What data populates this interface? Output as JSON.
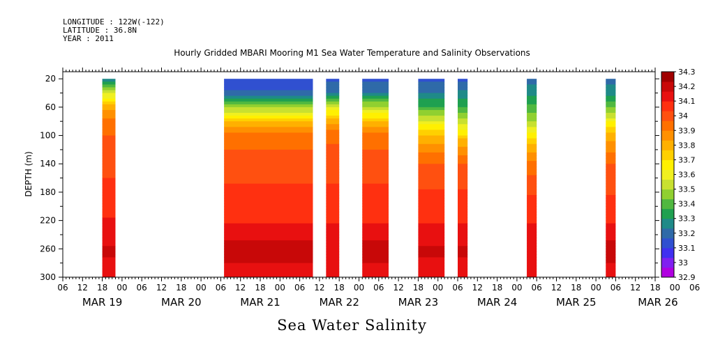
{
  "header": {
    "longitude": "LONGITUDE : 122W(-122)",
    "latitude": "LATITUDE : 36.8N",
    "year": "YEAR : 2011"
  },
  "colors": {
    "scale": [
      "#b000e0",
      "#8020f0",
      "#4030f0",
      "#3050d0",
      "#2f6aa8",
      "#1f8a88",
      "#1fa050",
      "#50b840",
      "#90d030",
      "#c8e030",
      "#f0f020",
      "#fff000",
      "#ffd000",
      "#ffb000",
      "#ff9000",
      "#ff7000",
      "#ff5010",
      "#ff3010",
      "#e81010",
      "#c80808",
      "#a00000"
    ]
  },
  "chart_data": {
    "type": "heatmap",
    "title": "Hourly Gridded MBARI Mooring M1 Sea Water Temperature and Salinity Observations",
    "subtitle": "Sea Water Salinity",
    "ylabel": "DEPTH (m)",
    "xlabel": "",
    "ylim": [
      300,
      10
    ],
    "y_reversed": true,
    "x_range_hours": [
      0,
      180
    ],
    "yticks": [
      20,
      60,
      100,
      140,
      180,
      220,
      260,
      300
    ],
    "hour_ticks": [
      "06",
      "12",
      "18",
      "00",
      "06",
      "12",
      "18",
      "00",
      "06",
      "12",
      "18",
      "00",
      "06",
      "12",
      "18",
      "00",
      "06",
      "12",
      "18",
      "00",
      "06",
      "12",
      "18",
      "00",
      "06",
      "12",
      "18",
      "00",
      "06",
      "12",
      "18",
      "00",
      "06"
    ],
    "date_labels": [
      "MAR 19",
      "MAR 20",
      "MAR 21",
      "MAR 22",
      "MAR 23",
      "MAR 24",
      "MAR 25",
      "MAR 26"
    ],
    "colorbar": {
      "labels": [
        "34.3",
        "34.2",
        "34.1",
        "34",
        "33.9",
        "33.8",
        "33.7",
        "33.6",
        "33.5",
        "33.4",
        "33.3",
        "33.2",
        "33.1",
        "33",
        "32.9"
      ]
    },
    "segments": [
      {
        "start": "Mar 19 18:00",
        "end": "Mar 19 22:00",
        "profile": [
          [
            20,
            33.25
          ],
          [
            35,
            33.5
          ],
          [
            55,
            33.8
          ],
          [
            75,
            33.95
          ],
          [
            100,
            34.02
          ],
          [
            140,
            34.08
          ],
          [
            180,
            34.1
          ],
          [
            230,
            34.18
          ],
          [
            260,
            34.24
          ],
          [
            300,
            34.2
          ]
        ]
      },
      {
        "start": "Mar 21 07:00",
        "end": "Mar 22 10:00",
        "profile": [
          [
            20,
            33.1
          ],
          [
            40,
            33.2
          ],
          [
            60,
            33.5
          ],
          [
            80,
            33.8
          ],
          [
            100,
            33.98
          ],
          [
            140,
            34.06
          ],
          [
            180,
            34.1
          ],
          [
            220,
            34.15
          ],
          [
            260,
            34.26
          ],
          [
            300,
            34.2
          ]
        ]
      },
      {
        "start": "Mar 22 14:00",
        "end": "Mar 22 18:00",
        "profile": [
          [
            20,
            33.15
          ],
          [
            40,
            33.25
          ],
          [
            60,
            33.6
          ],
          [
            80,
            33.85
          ],
          [
            100,
            34.0
          ],
          [
            140,
            34.06
          ],
          [
            180,
            34.1
          ],
          [
            220,
            34.15
          ],
          [
            260,
            34.22
          ],
          [
            300,
            34.2
          ]
        ]
      },
      {
        "start": "Mar 23 01:00",
        "end": "Mar 23 09:00",
        "profile": [
          [
            20,
            33.15
          ],
          [
            40,
            33.25
          ],
          [
            60,
            33.55
          ],
          [
            80,
            33.82
          ],
          [
            100,
            33.98
          ],
          [
            140,
            34.06
          ],
          [
            180,
            34.1
          ],
          [
            220,
            34.15
          ],
          [
            260,
            34.26
          ],
          [
            300,
            34.2
          ]
        ]
      },
      {
        "start": "Mar 23 18:00",
        "end": "Mar 24 02:00",
        "profile": [
          [
            20,
            33.15
          ],
          [
            40,
            33.25
          ],
          [
            60,
            33.4
          ],
          [
            80,
            33.62
          ],
          [
            100,
            33.82
          ],
          [
            140,
            34.02
          ],
          [
            180,
            34.1
          ],
          [
            220,
            34.15
          ],
          [
            260,
            34.24
          ],
          [
            300,
            34.2
          ]
        ]
      },
      {
        "start": "Mar 24 06:00",
        "end": "Mar 24 09:00",
        "profile": [
          [
            20,
            33.15
          ],
          [
            40,
            33.28
          ],
          [
            60,
            33.4
          ],
          [
            90,
            33.65
          ],
          [
            110,
            33.85
          ],
          [
            140,
            34.02
          ],
          [
            180,
            34.1
          ],
          [
            220,
            34.15
          ],
          [
            260,
            34.24
          ],
          [
            300,
            34.2
          ]
        ]
      },
      {
        "start": "Mar 25 03:00",
        "end": "Mar 25 06:00",
        "profile": [
          [
            20,
            33.22
          ],
          [
            40,
            33.3
          ],
          [
            60,
            33.4
          ],
          [
            90,
            33.6
          ],
          [
            110,
            33.8
          ],
          [
            140,
            33.98
          ],
          [
            180,
            34.08
          ],
          [
            220,
            34.15
          ],
          [
            260,
            34.22
          ],
          [
            300,
            34.2
          ]
        ]
      },
      {
        "start": "Mar 26 03:00",
        "end": "Mar 26 06:00",
        "profile": [
          [
            20,
            33.22
          ],
          [
            40,
            33.3
          ],
          [
            60,
            33.45
          ],
          [
            80,
            33.65
          ],
          [
            100,
            33.85
          ],
          [
            140,
            34.02
          ],
          [
            180,
            34.08
          ],
          [
            220,
            34.15
          ],
          [
            260,
            34.26
          ],
          [
            300,
            34.2
          ]
        ]
      }
    ]
  }
}
